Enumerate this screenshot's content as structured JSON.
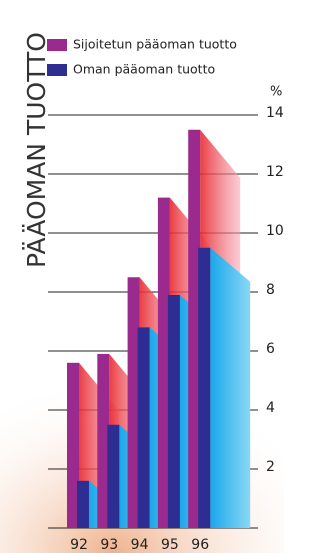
{
  "chart_data": {
    "type": "bar",
    "title": "PÄÄOMAN TUOTTO",
    "y_unit": "%",
    "categories": [
      "92",
      "93",
      "94",
      "95",
      "96"
    ],
    "series": [
      {
        "name": "Sijoitetun pääoman tuotto",
        "color": "#9b2a8f",
        "values": [
          5.6,
          5.9,
          8.5,
          11.2,
          13.5
        ]
      },
      {
        "name": "Oman pääoman tuotto",
        "color": "#2e2d92",
        "values": [
          1.6,
          3.5,
          6.8,
          7.9,
          9.5
        ]
      }
    ],
    "ylim": [
      0,
      14
    ],
    "yticks": [
      2,
      4,
      6,
      8,
      10,
      12,
      14
    ],
    "grid": true
  }
}
